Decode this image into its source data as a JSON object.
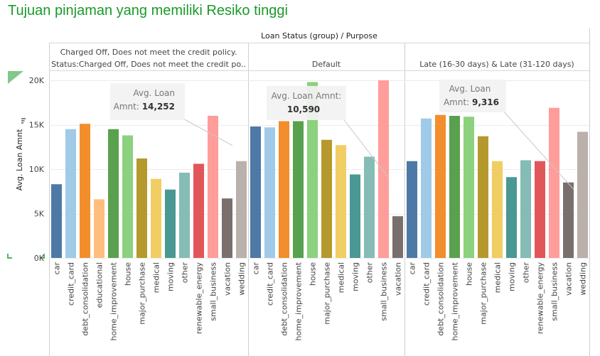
{
  "page_title": "Tujuan pinjaman yang memiliki Resiko tinggi",
  "chart_data": {
    "type": "bar",
    "title": "",
    "column_header": "Loan Status (group)  /  Purpose",
    "ylabel": "Avg. Loan Amnt",
    "ylim": [
      0,
      20000
    ],
    "y_ticks": [
      0,
      5000,
      10000,
      15000,
      20000
    ],
    "y_tick_labels": [
      "0K",
      "5K",
      "10K",
      "15K",
      "20K"
    ],
    "grid": true,
    "colors": {
      "car": "#4e79a7",
      "credit_card": "#a0cbe8",
      "debt_consolidation": "#f28e2b",
      "educational": "#ffbe7d",
      "home_improvement": "#59a14f",
      "house": "#8cd17d",
      "major_purchase": "#b6992d",
      "medical": "#f1ce63",
      "moving": "#499894",
      "other": "#86bcb6",
      "renewable_energy": "#e15759",
      "small_business": "#ff9d9a",
      "vacation": "#79706e",
      "wedding": "#bab0ac"
    },
    "panels": [
      {
        "header_lines": [
          "Charged Off, Does not meet the credit policy.",
          "Status:Charged Off, Does not meet the credit po.."
        ],
        "categories": [
          "car",
          "credit_card",
          "debt_consolidation",
          "educational",
          "home_improvement",
          "house",
          "major_purchase",
          "medical",
          "moving",
          "other",
          "renewable_energy",
          "small_business",
          "vacation",
          "wedding"
        ],
        "values": [
          8300,
          14500,
          15100,
          6600,
          14500,
          13800,
          11200,
          8900,
          7700,
          9600,
          10600,
          16000,
          6700,
          10900
        ],
        "reference_line": 14252,
        "reference_label": "Avg. Loan\nAmnt:",
        "reference_value_text": "14,252"
      },
      {
        "header_lines": [
          "Default"
        ],
        "categories": [
          "car",
          "credit_card",
          "debt_consolidation",
          "home_improvement",
          "house",
          "major_purchase",
          "medical",
          "moving",
          "other",
          "small_business",
          "vacation"
        ],
        "values": [
          14800,
          14700,
          15400,
          15400,
          19800,
          13300,
          12700,
          9400,
          11400,
          20000,
          4700
        ],
        "reference_line": 10590,
        "reference_label": "Avg. Loan Amnt:",
        "reference_value_text": "10,590"
      },
      {
        "header_lines": [
          "Late (16-30 days) & Late (31-120 days)"
        ],
        "categories": [
          "car",
          "credit_card",
          "debt_consolidation",
          "home_improvement",
          "house",
          "major_purchase",
          "medical",
          "moving",
          "other",
          "renewable_energy",
          "small_business",
          "vacation",
          "wedding"
        ],
        "values": [
          10900,
          15700,
          16100,
          16000,
          15900,
          13700,
          10900,
          9100,
          11000,
          10900,
          16900,
          8500,
          14200
        ],
        "reference_line": 9316,
        "reference_label": "Avg. Loan",
        "reference_value_text": "9,316"
      }
    ]
  }
}
